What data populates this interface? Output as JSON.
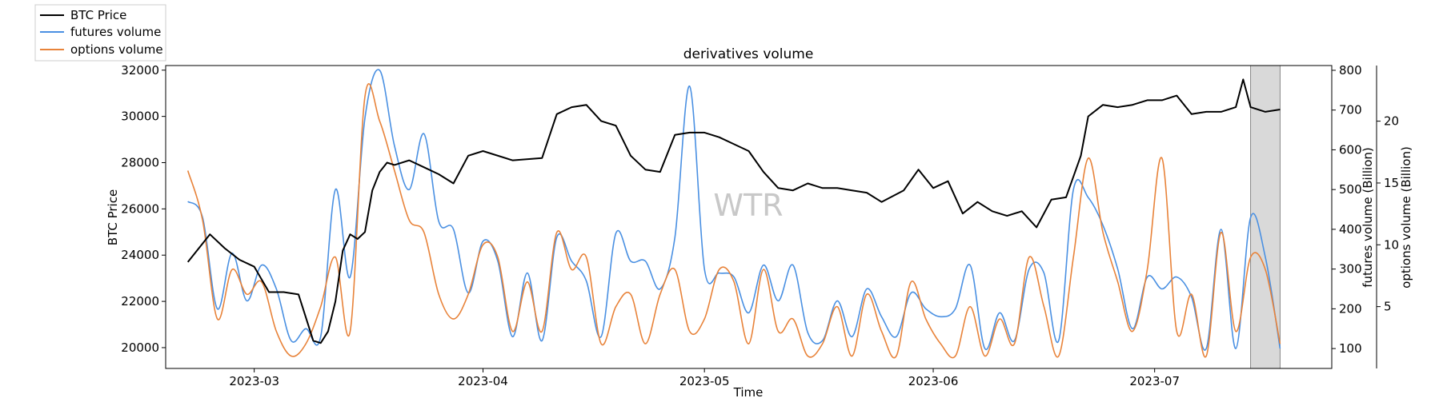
{
  "chart_data": {
    "type": "line",
    "title": "derivatives volume",
    "xlabel": "Time",
    "watermark": "WTR",
    "x_range": [
      "2023-02-17",
      "2023-07-25"
    ],
    "x_ticks": [
      "2023-03",
      "2023-04",
      "2023-05",
      "2023-06",
      "2023-07"
    ],
    "x_tick_dates": [
      "2023-03-01",
      "2023-04-01",
      "2023-05-01",
      "2023-06-01",
      "2023-07-01"
    ],
    "highlight_region": [
      "2023-07-14",
      "2023-07-18"
    ],
    "axes": {
      "left": {
        "label": "BTC Price",
        "range": [
          19100,
          32200
        ],
        "ticks": [
          "20000",
          "22000",
          "24000",
          "26000",
          "28000",
          "30000",
          "32000"
        ]
      },
      "right1": {
        "label": "futures volume (Billion)",
        "range": [
          50,
          812
        ],
        "ticks": [
          "100",
          "200",
          "300",
          "400",
          "500",
          "600",
          "700",
          "800"
        ]
      },
      "right2": {
        "label": "options volume (Billion)",
        "range": [
          0,
          24.5
        ],
        "ticks": [
          "5",
          "10",
          "15",
          "20"
        ]
      }
    },
    "legend": {
      "position": "top-left",
      "entries": [
        "BTC Price",
        "futures volume",
        "options volume"
      ]
    },
    "series": [
      {
        "name": "BTC Price",
        "axis": "left",
        "color": "#000000",
        "x": [
          "2023-02-20",
          "2023-02-23",
          "2023-02-25",
          "2023-02-27",
          "2023-03-01",
          "2023-03-03",
          "2023-03-05",
          "2023-03-07",
          "2023-03-09",
          "2023-03-10",
          "2023-03-11",
          "2023-03-12",
          "2023-03-13",
          "2023-03-14",
          "2023-03-15",
          "2023-03-16",
          "2023-03-17",
          "2023-03-18",
          "2023-03-19",
          "2023-03-20",
          "2023-03-22",
          "2023-03-24",
          "2023-03-26",
          "2023-03-28",
          "2023-03-30",
          "2023-04-01",
          "2023-04-05",
          "2023-04-09",
          "2023-04-11",
          "2023-04-13",
          "2023-04-15",
          "2023-04-17",
          "2023-04-19",
          "2023-04-21",
          "2023-04-23",
          "2023-04-25",
          "2023-04-27",
          "2023-04-29",
          "2023-05-01",
          "2023-05-03",
          "2023-05-05",
          "2023-05-07",
          "2023-05-09",
          "2023-05-11",
          "2023-05-13",
          "2023-05-15",
          "2023-05-17",
          "2023-05-19",
          "2023-05-21",
          "2023-05-23",
          "2023-05-25",
          "2023-05-28",
          "2023-05-30",
          "2023-06-01",
          "2023-06-03",
          "2023-06-05",
          "2023-06-07",
          "2023-06-09",
          "2023-06-11",
          "2023-06-13",
          "2023-06-15",
          "2023-06-17",
          "2023-06-19",
          "2023-06-21",
          "2023-06-22",
          "2023-06-24",
          "2023-06-26",
          "2023-06-28",
          "2023-06-30",
          "2023-07-02",
          "2023-07-04",
          "2023-07-06",
          "2023-07-08",
          "2023-07-10",
          "2023-07-12",
          "2023-07-13",
          "2023-07-14",
          "2023-07-16",
          "2023-07-18"
        ],
        "y": [
          23700,
          24900,
          24300,
          23800,
          23500,
          22400,
          22400,
          22300,
          20300,
          20200,
          20700,
          22000,
          24200,
          24900,
          24700,
          25000,
          26800,
          27600,
          28000,
          27900,
          28100,
          27800,
          27500,
          27100,
          28300,
          28500,
          28100,
          28200,
          30100,
          30400,
          30500,
          29800,
          29600,
          28300,
          27700,
          27600,
          29200,
          29300,
          29300,
          29100,
          28800,
          28500,
          27600,
          26900,
          26800,
          27100,
          26900,
          26900,
          26800,
          26700,
          26300,
          26800,
          27700,
          26900,
          27200,
          25800,
          26300,
          25900,
          25700,
          25900,
          25200,
          26400,
          26500,
          28300,
          30000,
          30500,
          30400,
          30500,
          30700,
          30700,
          30900,
          30100,
          30200,
          30200,
          30400,
          31600,
          30400,
          30200,
          30300
        ]
      },
      {
        "name": "futures volume",
        "axis": "right1",
        "color": "#4a90e2",
        "x": [
          "2023-02-20",
          "2023-02-22",
          "2023-02-24",
          "2023-02-26",
          "2023-02-28",
          "2023-03-02",
          "2023-03-04",
          "2023-03-06",
          "2023-03-08",
          "2023-03-10",
          "2023-03-12",
          "2023-03-14",
          "2023-03-16",
          "2023-03-18",
          "2023-03-20",
          "2023-03-22",
          "2023-03-24",
          "2023-03-26",
          "2023-03-28",
          "2023-03-30",
          "2023-04-01",
          "2023-04-03",
          "2023-04-05",
          "2023-04-07",
          "2023-04-09",
          "2023-04-11",
          "2023-04-13",
          "2023-04-15",
          "2023-04-17",
          "2023-04-19",
          "2023-04-21",
          "2023-04-23",
          "2023-04-25",
          "2023-04-27",
          "2023-04-29",
          "2023-05-01",
          "2023-05-03",
          "2023-05-05",
          "2023-05-07",
          "2023-05-09",
          "2023-05-11",
          "2023-05-13",
          "2023-05-15",
          "2023-05-17",
          "2023-05-19",
          "2023-05-21",
          "2023-05-23",
          "2023-05-25",
          "2023-05-27",
          "2023-05-29",
          "2023-05-31",
          "2023-06-02",
          "2023-06-04",
          "2023-06-06",
          "2023-06-08",
          "2023-06-10",
          "2023-06-12",
          "2023-06-14",
          "2023-06-16",
          "2023-06-18",
          "2023-06-20",
          "2023-06-22",
          "2023-06-24",
          "2023-06-26",
          "2023-06-28",
          "2023-06-30",
          "2023-07-02",
          "2023-07-04",
          "2023-07-06",
          "2023-07-08",
          "2023-07-10",
          "2023-07-12",
          "2023-07-14",
          "2023-07-16",
          "2023-07-18"
        ],
        "y": [
          470,
          430,
          200,
          340,
          220,
          310,
          250,
          120,
          150,
          130,
          500,
          280,
          680,
          800,
          610,
          500,
          640,
          420,
          400,
          240,
          370,
          320,
          130,
          290,
          120,
          380,
          320,
          270,
          130,
          390,
          320,
          320,
          250,
          380,
          760,
          300,
          290,
          280,
          190,
          310,
          220,
          310,
          140,
          120,
          220,
          130,
          250,
          180,
          130,
          240,
          200,
          180,
          200,
          310,
          100,
          190,
          120,
          300,
          290,
          120,
          500,
          480,
          410,
          300,
          150,
          280,
          250,
          280,
          230,
          100,
          400,
          100,
          430,
          330,
          100
        ]
      },
      {
        "name": "options volume",
        "axis": "right2",
        "color": "#e8833a",
        "x": [
          "2023-02-20",
          "2023-02-22",
          "2023-02-24",
          "2023-02-26",
          "2023-02-28",
          "2023-03-02",
          "2023-03-04",
          "2023-03-06",
          "2023-03-08",
          "2023-03-10",
          "2023-03-12",
          "2023-03-14",
          "2023-03-16",
          "2023-03-18",
          "2023-03-20",
          "2023-03-22",
          "2023-03-24",
          "2023-03-26",
          "2023-03-28",
          "2023-03-30",
          "2023-04-01",
          "2023-04-03",
          "2023-04-05",
          "2023-04-07",
          "2023-04-09",
          "2023-04-11",
          "2023-04-13",
          "2023-04-15",
          "2023-04-17",
          "2023-04-19",
          "2023-04-21",
          "2023-04-23",
          "2023-04-25",
          "2023-04-27",
          "2023-04-29",
          "2023-05-01",
          "2023-05-03",
          "2023-05-05",
          "2023-05-07",
          "2023-05-09",
          "2023-05-11",
          "2023-05-13",
          "2023-05-15",
          "2023-05-17",
          "2023-05-19",
          "2023-05-21",
          "2023-05-23",
          "2023-05-25",
          "2023-05-27",
          "2023-05-29",
          "2023-05-31",
          "2023-06-02",
          "2023-06-04",
          "2023-06-06",
          "2023-06-08",
          "2023-06-10",
          "2023-06-12",
          "2023-06-14",
          "2023-06-16",
          "2023-06-18",
          "2023-06-20",
          "2023-06-22",
          "2023-06-24",
          "2023-06-26",
          "2023-06-28",
          "2023-06-30",
          "2023-07-02",
          "2023-07-04",
          "2023-07-06",
          "2023-07-08",
          "2023-07-10",
          "2023-07-12",
          "2023-07-14",
          "2023-07-16",
          "2023-07-18"
        ],
        "y": [
          16,
          12,
          4,
          8,
          6,
          7,
          3,
          1,
          2,
          5,
          9,
          3,
          22,
          20,
          16,
          12,
          11,
          6,
          4,
          6,
          10,
          9,
          3,
          7,
          3,
          11,
          8,
          9,
          2,
          5,
          6,
          2,
          6,
          8,
          3,
          4,
          8,
          7,
          2,
          8,
          3,
          4,
          1,
          2,
          5,
          1,
          6,
          3,
          1,
          7,
          4,
          2,
          1,
          5,
          1,
          4,
          2,
          9,
          5,
          1,
          9,
          17,
          11,
          7,
          3,
          8,
          17,
          3,
          6,
          1,
          11,
          3,
          9,
          8,
          2
        ]
      }
    ]
  }
}
